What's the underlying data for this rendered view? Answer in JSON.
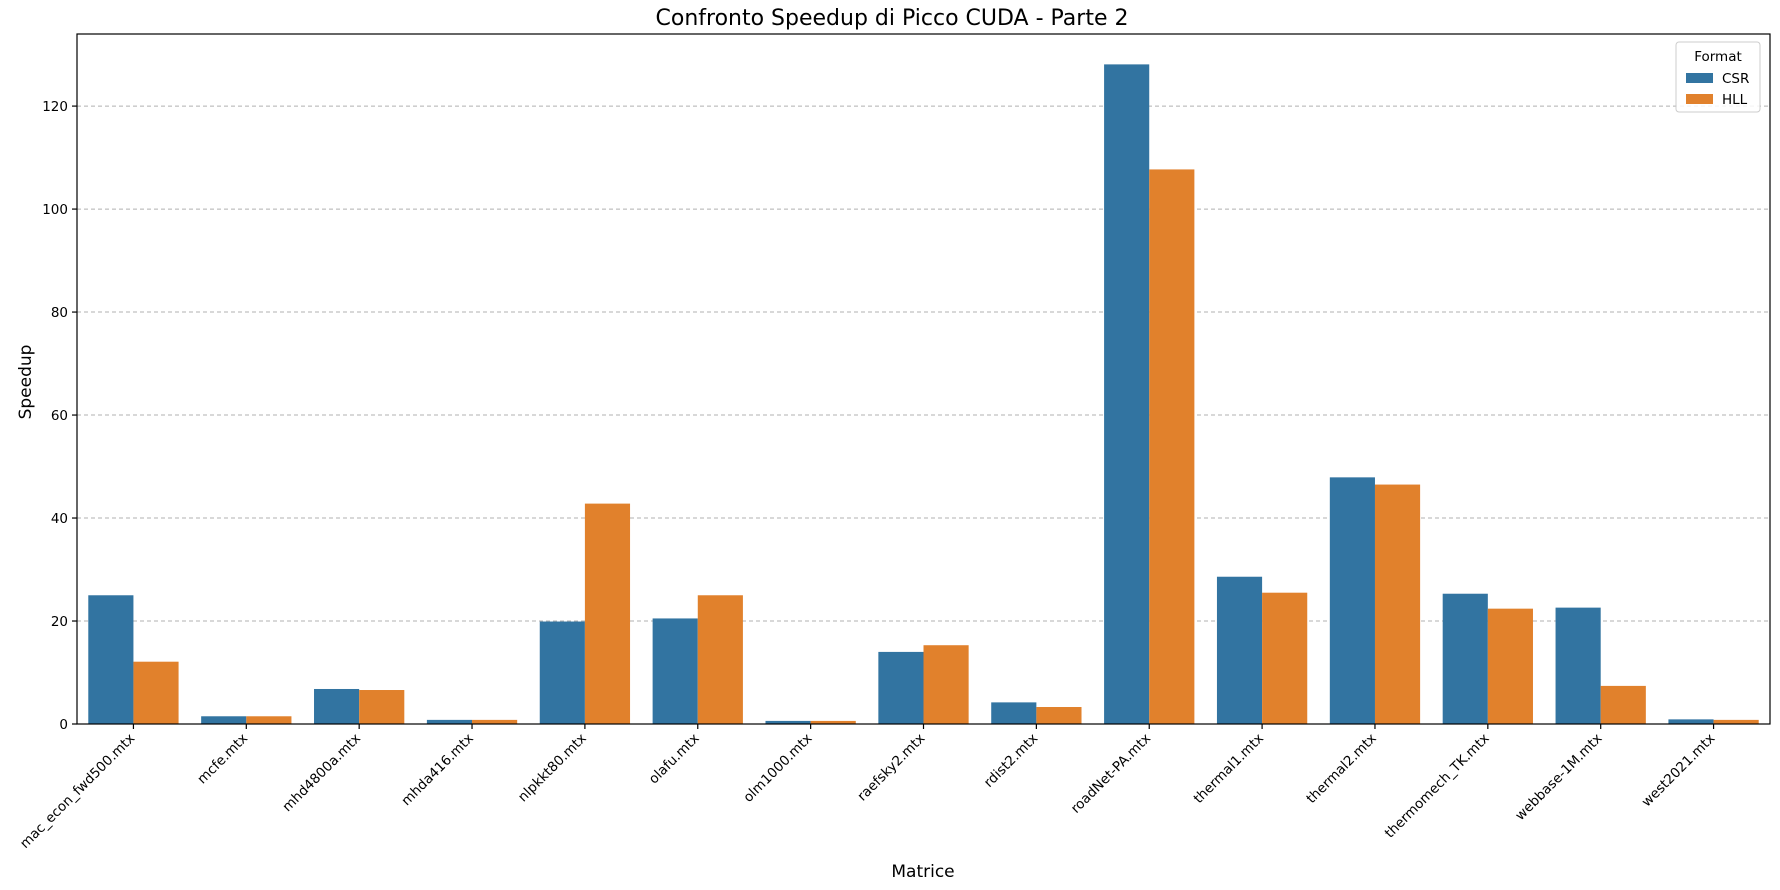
{
  "chart_data": {
    "type": "bar",
    "title": "Confronto Speedup di Picco CUDA - Parte 2",
    "xlabel": "Matrice",
    "ylabel": "Speedup",
    "ylim": [
      0,
      134
    ],
    "yticks": [
      0,
      20,
      40,
      60,
      80,
      100,
      120
    ],
    "grid": "y-dashed",
    "legend": {
      "title": "Format",
      "placement": "top-right"
    },
    "categories": [
      "mac_econ_fwd500.mtx",
      "mcfe.mtx",
      "mhd4800a.mtx",
      "mhda416.mtx",
      "nlpkkt80.mtx",
      "olafu.mtx",
      "olm1000.mtx",
      "raefsky2.mtx",
      "rdist2.mtx",
      "roadNet-PA.mtx",
      "thermal1.mtx",
      "thermal2.mtx",
      "thermomech_TK.mtx",
      "webbase-1M.mtx",
      "west2021.mtx"
    ],
    "series": [
      {
        "name": "CSR",
        "color": "#3274a1",
        "values": [
          25.0,
          1.5,
          6.8,
          0.8,
          19.9,
          20.5,
          0.6,
          14.0,
          4.2,
          128.1,
          28.6,
          47.9,
          25.3,
          22.6,
          0.9
        ]
      },
      {
        "name": "HLL",
        "color": "#e1812c",
        "values": [
          12.1,
          1.5,
          6.6,
          0.8,
          42.8,
          25.0,
          0.6,
          15.3,
          3.3,
          107.7,
          25.5,
          46.5,
          22.4,
          7.4,
          0.8
        ]
      }
    ]
  }
}
